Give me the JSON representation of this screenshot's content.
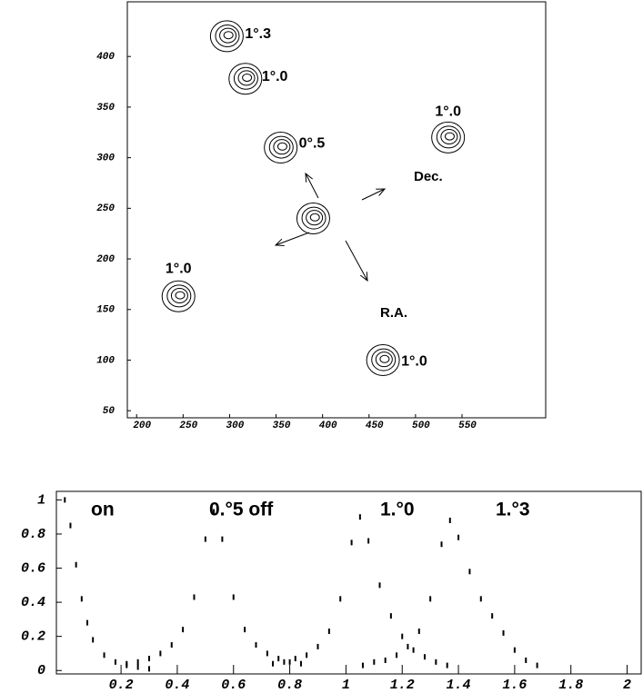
{
  "chart_data": [
    {
      "type": "contour",
      "xlim": [
        190,
        640
      ],
      "ylim": [
        43,
        454
      ],
      "xticks": [
        200,
        250,
        300,
        350,
        400,
        450,
        500,
        550
      ],
      "yticks": [
        50,
        100,
        150,
        200,
        250,
        300,
        350,
        400
      ],
      "sources": [
        {
          "x": 390,
          "y": 240
        },
        {
          "x": 297,
          "y": 420,
          "label": "1°.3"
        },
        {
          "x": 317,
          "y": 378,
          "label": "1°.0"
        },
        {
          "x": 355,
          "y": 310,
          "label": "0°.5"
        },
        {
          "x": 535,
          "y": 320,
          "label": "1°.0"
        },
        {
          "x": 245,
          "y": 163,
          "label": "1°.0"
        },
        {
          "x": 465,
          "y": 100,
          "label": "1°.0"
        }
      ],
      "annotations": [
        "Dec.",
        "R.A."
      ]
    },
    {
      "type": "scatter",
      "xlim": [
        -0.03,
        2.05
      ],
      "ylim": [
        -0.02,
        1.05
      ],
      "xticks": [
        0.2,
        0.4,
        0.6,
        0.8,
        1,
        1.2,
        1.4,
        1.6,
        1.8,
        2
      ],
      "yticks": [
        0,
        0.2,
        0.4,
        0.6,
        0.8,
        1
      ],
      "series": [
        {
          "name": "on",
          "color": "#000000",
          "x": [
            0,
            0.02,
            0.04,
            0.06,
            0.08,
            0.1,
            0.14,
            0.18,
            0.22,
            0.26,
            0.3
          ],
          "values": [
            1.0,
            0.85,
            0.62,
            0.42,
            0.28,
            0.18,
            0.09,
            0.05,
            0.03,
            0.02,
            0.01
          ]
        },
        {
          "name": "0.°5 off",
          "color": "#000000",
          "x": [
            0.22,
            0.26,
            0.3,
            0.34,
            0.38,
            0.42,
            0.46,
            0.5,
            0.53,
            0.56,
            0.6,
            0.64,
            0.68,
            0.72,
            0.76,
            0.8,
            0.84
          ],
          "values": [
            0.04,
            0.05,
            0.07,
            0.1,
            0.15,
            0.24,
            0.43,
            0.77,
            0.93,
            0.77,
            0.43,
            0.24,
            0.15,
            0.1,
            0.07,
            0.05,
            0.04
          ]
        },
        {
          "name": "1.°0",
          "color": "#000000",
          "x": [
            0.74,
            0.78,
            0.82,
            0.86,
            0.9,
            0.94,
            0.98,
            1.02,
            1.05,
            1.08,
            1.12,
            1.16,
            1.2,
            1.24,
            1.28,
            1.32,
            1.36
          ],
          "values": [
            0.04,
            0.05,
            0.07,
            0.09,
            0.14,
            0.23,
            0.42,
            0.75,
            0.9,
            0.76,
            0.5,
            0.32,
            0.2,
            0.12,
            0.08,
            0.05,
            0.03
          ]
        },
        {
          "name": "1.°3",
          "color": "#000000",
          "x": [
            1.06,
            1.1,
            1.14,
            1.18,
            1.22,
            1.26,
            1.3,
            1.34,
            1.37,
            1.4,
            1.44,
            1.48,
            1.52,
            1.56,
            1.6,
            1.64,
            1.68
          ],
          "values": [
            0.03,
            0.05,
            0.06,
            0.09,
            0.14,
            0.23,
            0.42,
            0.74,
            0.88,
            0.78,
            0.58,
            0.42,
            0.32,
            0.22,
            0.12,
            0.06,
            0.03
          ]
        }
      ]
    }
  ]
}
